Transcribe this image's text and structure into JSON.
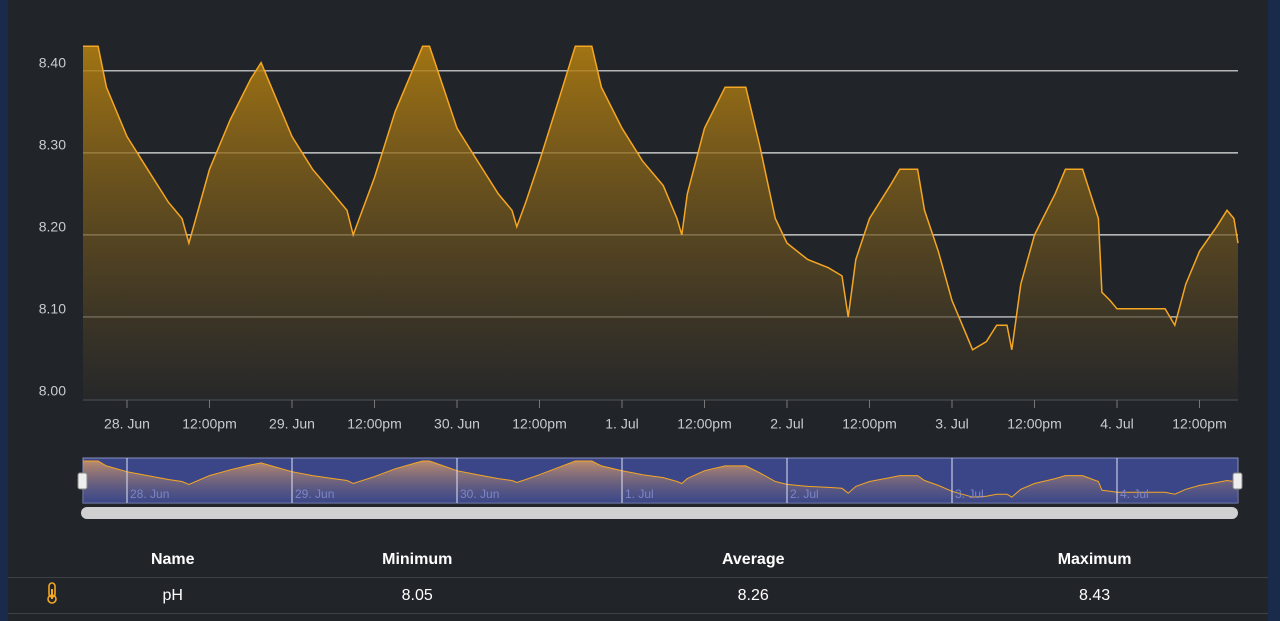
{
  "chart_data": {
    "type": "area",
    "color": "#f5a623",
    "x": [
      -6.4,
      -4.2,
      -3,
      0,
      3,
      6,
      8,
      9,
      10,
      12,
      15,
      18,
      19.5,
      21,
      24,
      27,
      30,
      32,
      32.9,
      36,
      39,
      42,
      43,
      44,
      46,
      48,
      51,
      54,
      56,
      56.7,
      58,
      60,
      63,
      65.2,
      67.6,
      69,
      72,
      75,
      78,
      80,
      80.7,
      81.5,
      84,
      87,
      90,
      92,
      94.3,
      96,
      99,
      102,
      104,
      104.9,
      106,
      108,
      111,
      112.4,
      115,
      116,
      118,
      120,
      122,
      123,
      125,
      126.5,
      128,
      128.7,
      130,
      132,
      135,
      136.5,
      139,
      141.3,
      141.8,
      143,
      144,
      151,
      152.4,
      154,
      156,
      158.5,
      160,
      161,
      161.6
    ],
    "series": [
      {
        "name": "pH",
        "values": [
          8.43,
          8.43,
          8.38,
          8.32,
          8.28,
          8.24,
          8.22,
          8.19,
          8.22,
          8.28,
          8.34,
          8.39,
          8.41,
          8.38,
          8.32,
          8.28,
          8.25,
          8.23,
          8.2,
          8.27,
          8.35,
          8.41,
          8.43,
          8.43,
          8.38,
          8.33,
          8.29,
          8.25,
          8.23,
          8.21,
          8.24,
          8.29,
          8.37,
          8.43,
          8.43,
          8.38,
          8.33,
          8.29,
          8.26,
          8.22,
          8.2,
          8.25,
          8.33,
          8.38,
          8.38,
          8.31,
          8.22,
          8.19,
          8.17,
          8.16,
          8.15,
          8.1,
          8.17,
          8.22,
          8.26,
          8.28,
          8.28,
          8.23,
          8.18,
          8.12,
          8.08,
          8.06,
          8.07,
          8.09,
          8.09,
          8.06,
          8.14,
          8.2,
          8.25,
          8.28,
          8.28,
          8.22,
          8.13,
          8.12,
          8.11,
          8.11,
          8.09,
          8.14,
          8.18,
          8.21,
          8.23,
          8.22,
          8.19
        ]
      }
    ],
    "xlim": [
      -6.4,
      161.6
    ],
    "xticks": [
      {
        "value": 0,
        "label": "28. Jun"
      },
      {
        "value": 12,
        "label": "12:00pm"
      },
      {
        "value": 24,
        "label": "29. Jun"
      },
      {
        "value": 36,
        "label": "12:00pm"
      },
      {
        "value": 48,
        "label": "30. Jun"
      },
      {
        "value": 60,
        "label": "12:00pm"
      },
      {
        "value": 72,
        "label": "1. Jul"
      },
      {
        "value": 84,
        "label": "12:00pm"
      },
      {
        "value": 96,
        "label": "2. Jul"
      },
      {
        "value": 108,
        "label": "12:00pm"
      },
      {
        "value": 120,
        "label": "3. Jul"
      },
      {
        "value": 132,
        "label": "12:00pm"
      },
      {
        "value": 144,
        "label": "4. Jul"
      },
      {
        "value": 156,
        "label": "12:00pm"
      }
    ],
    "ylim": [
      8.0,
      8.44
    ],
    "yticks": [
      {
        "value": 8.0,
        "label": "8.00"
      },
      {
        "value": 8.1,
        "label": "8.10"
      },
      {
        "value": 8.2,
        "label": "8.20"
      },
      {
        "value": 8.3,
        "label": "8.30"
      },
      {
        "value": 8.4,
        "label": "8.40"
      }
    ],
    "grid": true
  },
  "table": {
    "columns": [
      "Name",
      "Minimum",
      "Average",
      "Maximum"
    ],
    "rows": [
      [
        "pH",
        8.05,
        8.26,
        8.43
      ]
    ]
  }
}
